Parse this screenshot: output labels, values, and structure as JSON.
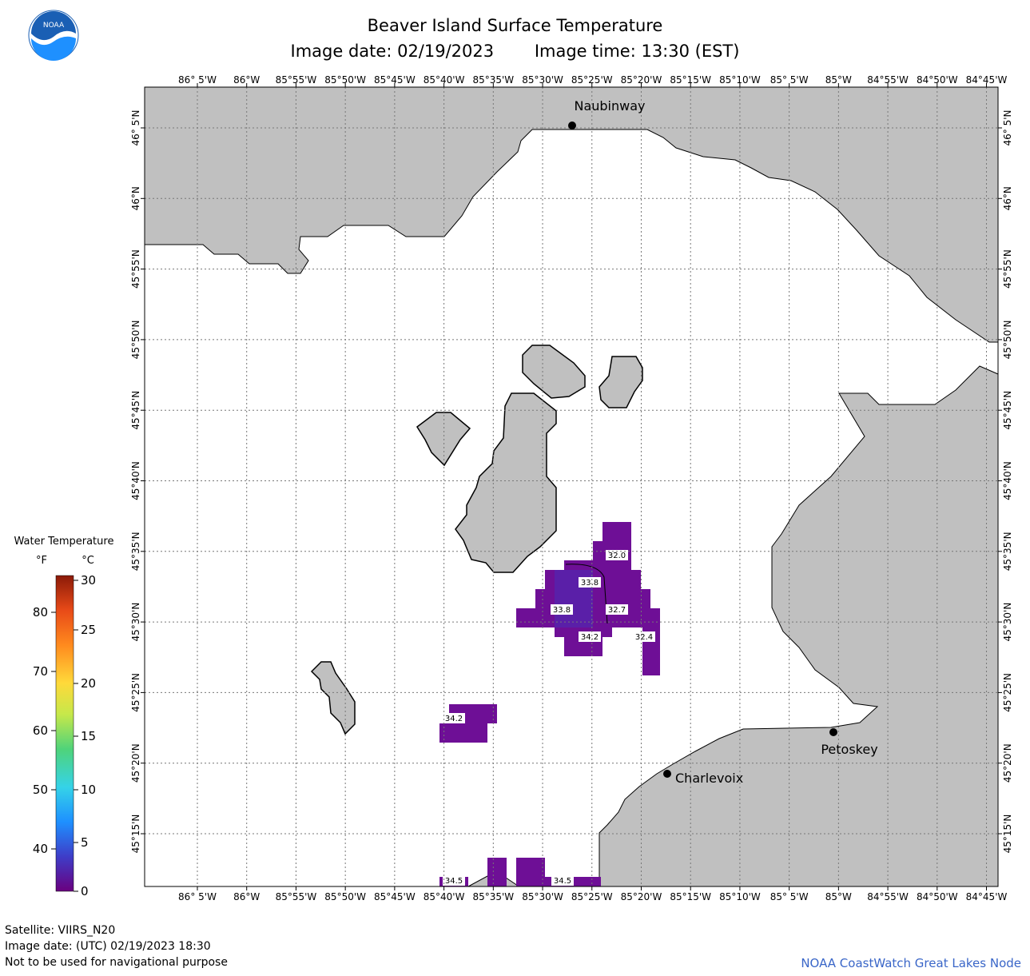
{
  "header": {
    "title": "Beaver Island Surface Temperature",
    "image_date": "Image date: 02/19/2023",
    "image_time": "Image time: 13:30 (EST)",
    "logo_text": "NOAA"
  },
  "lon_ticks": [
    "86° 5'W",
    "86°W",
    "85°55'W",
    "85°50'W",
    "85°45'W",
    "85°40'W",
    "85°35'W",
    "85°30'W",
    "85°25'W",
    "85°20'W",
    "85°15'W",
    "85°10'W",
    "85° 5'W",
    "85°W",
    "84°55'W",
    "84°50'W",
    "84°45'W"
  ],
  "lat_ticks": [
    "46° 5'N",
    "46°N",
    "45°55'N",
    "45°50'N",
    "45°45'N",
    "45°40'N",
    "45°35'N",
    "45°30'N",
    "45°25'N",
    "45°20'N",
    "45°15'N"
  ],
  "places": [
    {
      "name": "Naubinway"
    },
    {
      "name": "Charlevoix"
    },
    {
      "name": "Petoskey"
    }
  ],
  "temp_labels": [
    "32.0",
    "33.8",
    "33.8",
    "32.7",
    "34.2",
    "32.4",
    "34.2",
    "34.5",
    "34.5"
  ],
  "legend": {
    "title": "Water Temperature",
    "unit_f": "°F",
    "unit_c": "°C",
    "f_ticks": [
      "80",
      "70",
      "60",
      "50",
      "40"
    ],
    "c_ticks": [
      "30",
      "25",
      "20",
      "15",
      "10",
      "5",
      "0"
    ],
    "colors": [
      "#6a007f",
      "#3e3dc8",
      "#1e90ff",
      "#35d3e8",
      "#4fd37a",
      "#c6e84a",
      "#ffd93a",
      "#ff8a1e",
      "#e84a18",
      "#8b1a08"
    ]
  },
  "colors": {
    "land": "#c0c0c0",
    "purple_cold": "#6e0f96",
    "purple_mid": "#5a1fa8",
    "attribution": "#3a66c8"
  },
  "footer": {
    "satellite": "Satellite: VIIRS_N20",
    "utc_date": "Image date: (UTC) 02/19/2023  18:30",
    "disclaimer": "Not to be used for navigational purpose",
    "attribution": "NOAA CoastWatch Great Lakes Node"
  }
}
